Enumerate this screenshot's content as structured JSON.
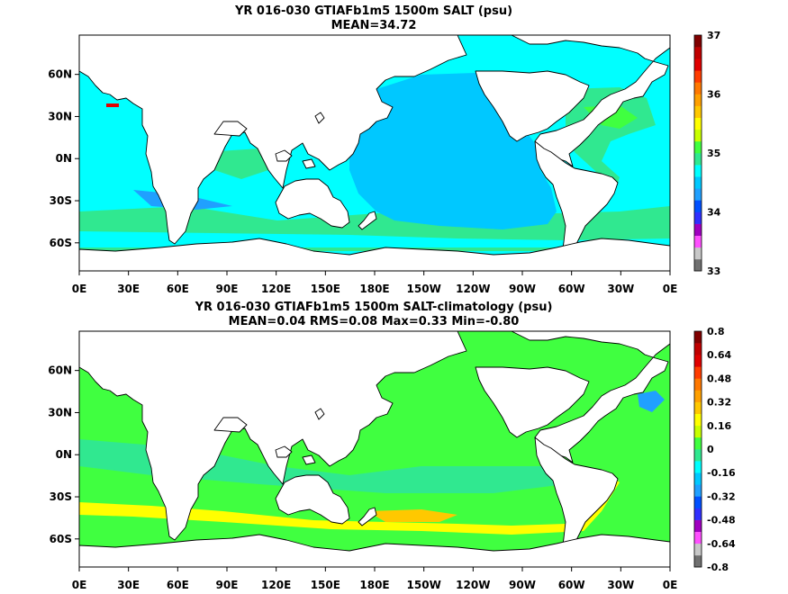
{
  "panels": [
    {
      "title_line1": "YR 016-030 GTIAFb1m5 1500m SALT (psu)",
      "title_line2": "MEAN=34.72",
      "colorbar": {
        "labels": [
          "33",
          "34",
          "35",
          "36",
          "37"
        ],
        "colors": [
          "#707070",
          "#c8c8c8",
          "#ff50ff",
          "#a000c0",
          "#3030ff",
          "#0050ff",
          "#20a0ff",
          "#00c8ff",
          "#00ffff",
          "#30e890",
          "#40ff40",
          "#c8ff00",
          "#ffff00",
          "#ffc800",
          "#ffa000",
          "#ff7800",
          "#ff3c00",
          "#e00000",
          "#c00000",
          "#800000"
        ]
      }
    },
    {
      "title_line1": "YR 016-030 GTIAFb1m5 1500m SALT-climatology (psu)",
      "title_line2": "MEAN=0.04   RMS=0.08   Max=0.33   Min=-0.80",
      "colorbar": {
        "labels": [
          "-0.8",
          "-0.64",
          "-0.48",
          "-0.32",
          "-0.16",
          "0",
          "0.16",
          "0.32",
          "0.48",
          "0.64",
          "0.8"
        ],
        "colors": [
          "#707070",
          "#c8c8c8",
          "#ff50ff",
          "#a000c0",
          "#3030ff",
          "#0050ff",
          "#20a0ff",
          "#00c8ff",
          "#00ffff",
          "#30e890",
          "#40ff40",
          "#c8ff00",
          "#ffff00",
          "#ffc800",
          "#ffa000",
          "#ff7800",
          "#ff3c00",
          "#e00000",
          "#c00000",
          "#800000"
        ]
      }
    }
  ],
  "axes": {
    "lon_labels": [
      "0E",
      "30E",
      "60E",
      "90E",
      "120E",
      "150E",
      "180E",
      "150W",
      "120W",
      "90W",
      "60W",
      "30W",
      "0E"
    ],
    "lat_labels": [
      "60N",
      "30N",
      "0N",
      "30S",
      "60S"
    ]
  },
  "colors": {
    "land": "#ffffff",
    "coast": "#000000",
    "p1_ocean": "#00ffff",
    "p1_pacific": "#00c8ff",
    "p1_green": "#30e890",
    "p1_deep": "#20a0ff",
    "p1_high": "#40ff40",
    "p1_med": "#e00000",
    "p2_green": "#40ff40",
    "p2_teal": "#30e890",
    "p2_yellow": "#ffff00",
    "p2_gold": "#ffc800",
    "p2_blue": "#20a0ff"
  }
}
